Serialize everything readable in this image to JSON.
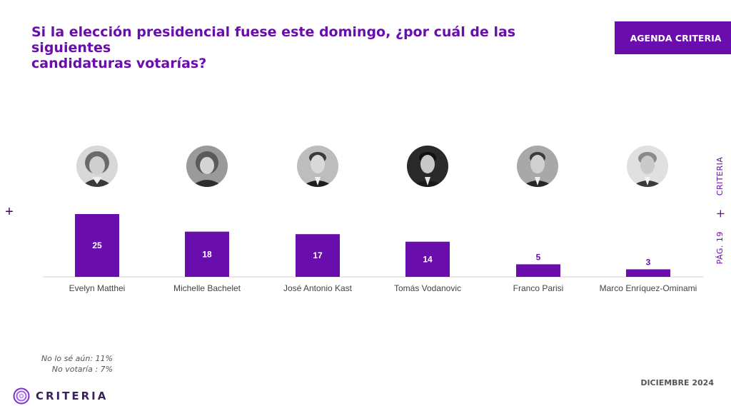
{
  "header": {
    "title": " Si la elección presidencial fuese este domingo, ¿por cuál de las siguientes\ncandidaturas votarías?",
    "agenda_label": "AGENDA CRITERIA"
  },
  "side": {
    "plus": "+",
    "page": "PÁG. 19",
    "brand": "CRITERIA"
  },
  "chart_data": {
    "type": "bar",
    "categories": [
      "Evelyn Matthei",
      "Michelle Bachelet",
      "José Antonio Kast",
      "Tomás Vodanovic",
      "Franco Parisi",
      "Marco Enríquez-Ominami"
    ],
    "values": [
      25,
      18,
      17,
      14,
      5,
      3
    ],
    "bar_color": "#6a0dad",
    "ylim": [
      0,
      25
    ],
    "title": "",
    "xlabel": "",
    "ylabel": ""
  },
  "notes": [
    "No lo sé aún: 11%",
    "No votaría : 7%"
  ],
  "footer": {
    "logo_text": "CRITERIA",
    "date": "DICIEMBRE 2024"
  },
  "colors": {
    "accent": "#6a0dad",
    "logo": "#3b2160"
  },
  "icons": [
    "candidate-portrait-icon",
    "plus-icon",
    "criteria-logo-icon"
  ]
}
